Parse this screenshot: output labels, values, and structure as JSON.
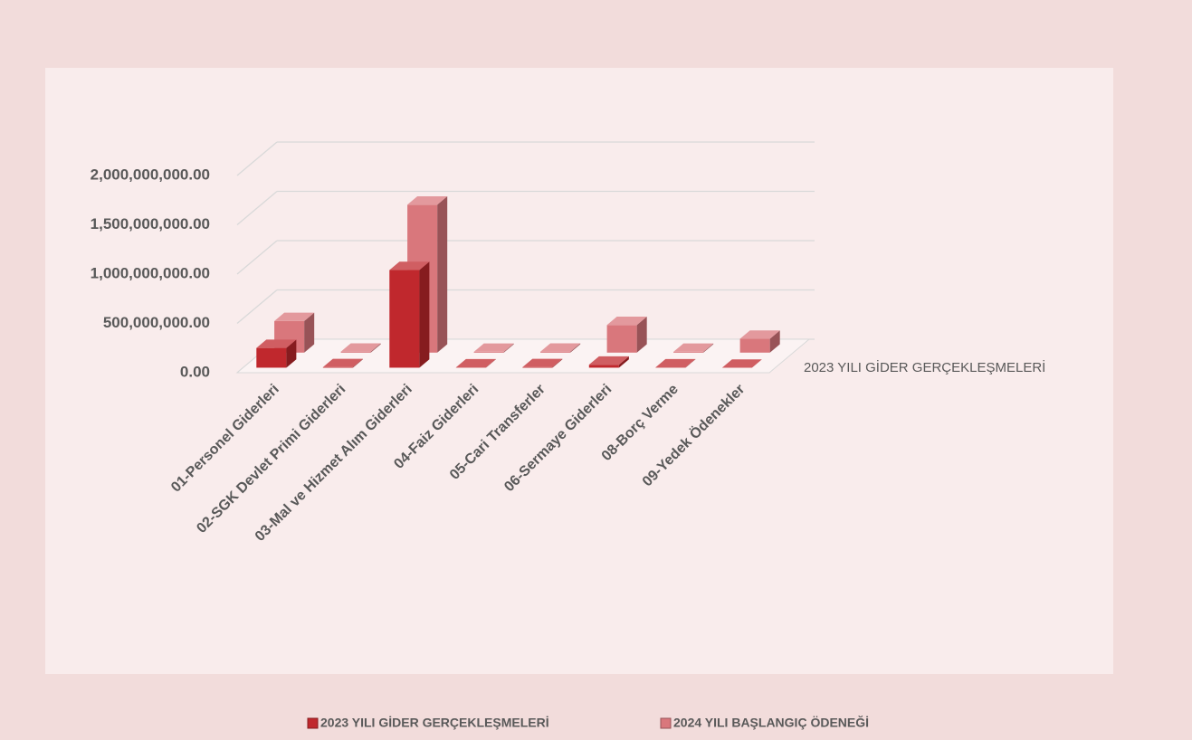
{
  "chart_data": {
    "type": "bar3d",
    "categories": [
      "01-Personel Giderleri",
      "02-SGK Devlet Primi Giderleri",
      "03-Mal ve Hizmet Alım Giderleri",
      "04-Faiz  Giderleri",
      "05-Cari Transferler",
      "06-Sermaye Giderleri",
      "08-Borç Verme",
      "09-Yedek Ödenekler"
    ],
    "series": [
      {
        "name": "2023 YILI GİDER GERÇEKLEŞMELERİ",
        "color": "#c0282d",
        "values": [
          200000000,
          5000000,
          990000000,
          3000000,
          5000000,
          30000000,
          3000000,
          0
        ]
      },
      {
        "name": "2024 YILI BAŞLANGIÇ ÖDENEĞİ",
        "color": "#d9777c",
        "values": [
          320000000,
          10000000,
          1500000000,
          8000000,
          10000000,
          280000000,
          8000000,
          140000000
        ]
      }
    ],
    "ylim": [
      0,
      2000000000
    ],
    "yticks": [
      {
        "value": 0,
        "label": "0.00"
      },
      {
        "value": 500000000,
        "label": "500,000,000.00"
      },
      {
        "value": 1000000000,
        "label": "1,000,000,000.00"
      },
      {
        "value": 1500000000,
        "label": "1,500,000,000.00"
      },
      {
        "value": 2000000000,
        "label": "2,000,000,000.00"
      }
    ],
    "grid": true
  }
}
